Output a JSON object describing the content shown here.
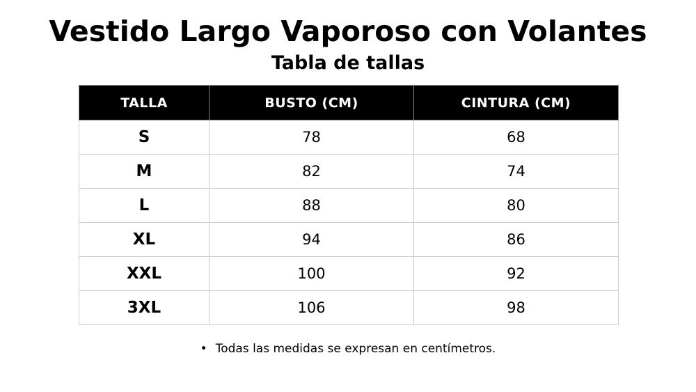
{
  "header": {
    "title": "Vestido Largo Vaporoso con Volantes",
    "subtitle": "Tabla de tallas"
  },
  "table": {
    "columns": [
      "TALLA",
      "BUSTO (CM)",
      "CINTURA (CM)"
    ],
    "rows": [
      [
        "S",
        78,
        68
      ],
      [
        "M",
        82,
        74
      ],
      [
        "L",
        88,
        80
      ],
      [
        "XL",
        94,
        86
      ],
      [
        "XXL",
        100,
        92
      ],
      [
        "3XL",
        106,
        98
      ]
    ]
  },
  "note": "Todas las medidas se expresan en centímetros."
}
